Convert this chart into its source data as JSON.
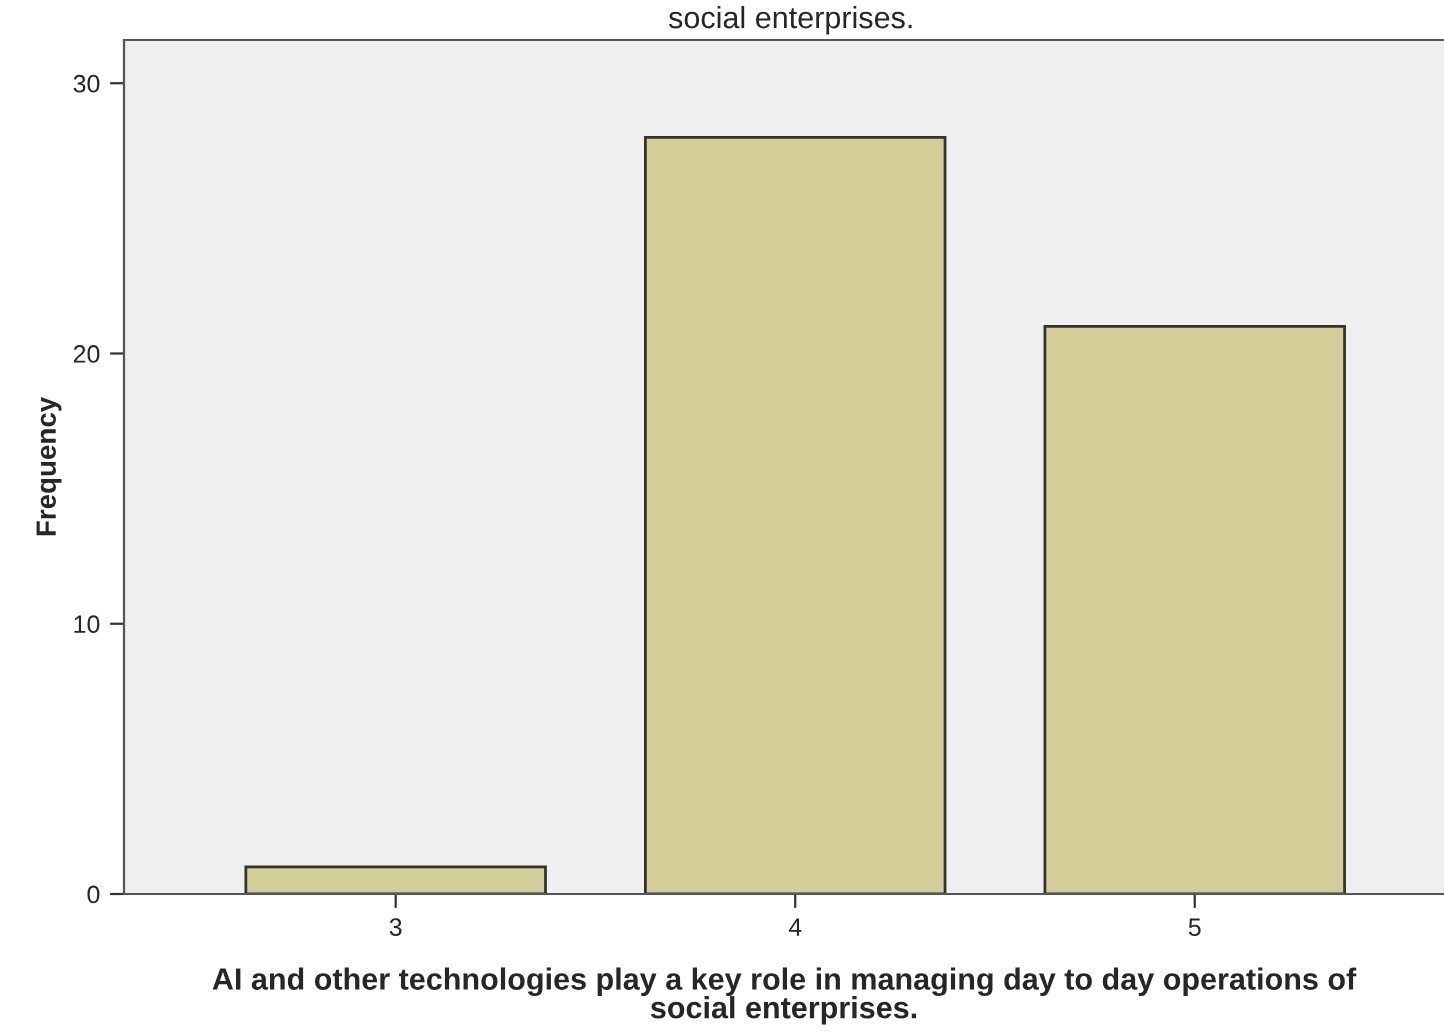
{
  "chart_data": {
    "type": "bar",
    "title": "social enterprises.",
    "xlabel": "AI and other technologies play a key role in managing day to day operations of\nsocial enterprises.",
    "ylabel": "Frequency",
    "categories": [
      "3",
      "4",
      "5"
    ],
    "values": [
      1,
      28,
      21
    ],
    "color": "#d3ce97",
    "ylim": [
      0,
      31.6
    ],
    "yticks": [
      0,
      10,
      20,
      30
    ],
    "grid": false
  }
}
